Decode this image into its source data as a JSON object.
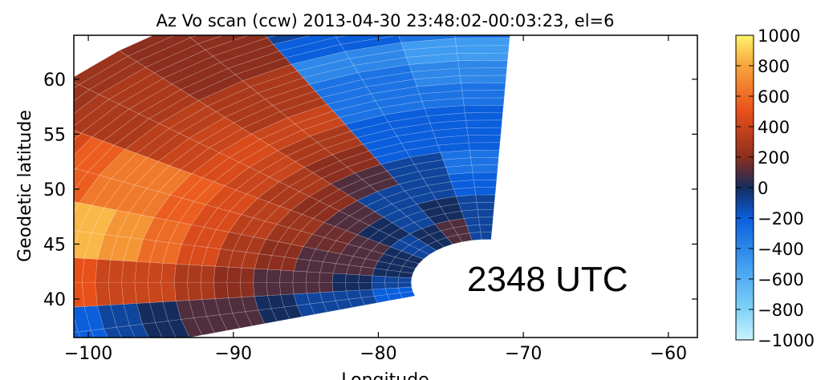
{
  "chart_data": {
    "type": "heatmap",
    "title": "Az Vo scan (ccw) 2013-04-30 23:48:02-00:03:23, el=6",
    "xlabel": "Longitude",
    "ylabel": "Geodetic latitude",
    "xlim": [
      -101,
      -58
    ],
    "ylim": [
      36.5,
      64
    ],
    "xticks": [
      -100,
      -90,
      -80,
      -70,
      -60
    ],
    "yticks": [
      40,
      45,
      50,
      55,
      60
    ],
    "xtick_labels": [
      "−100",
      "−90",
      "−80",
      "−70",
      "−60"
    ],
    "ytick_labels": [
      "40",
      "45",
      "50",
      "55",
      "60"
    ],
    "colorbar": {
      "range": [
        -1000,
        1000
      ],
      "ticks": [
        1000,
        800,
        600,
        400,
        200,
        0,
        -200,
        -400,
        -600,
        -800,
        -1000
      ],
      "tick_labels": [
        "1000",
        "800",
        "600",
        "400",
        "200",
        "0",
        "−200",
        "−400",
        "−600",
        "−800",
        "−1000"
      ]
    },
    "annotation": "2348 UTC",
    "scan_origin": {
      "lon": -72.5,
      "lat": 41.5
    },
    "beams": [
      {
        "azimuth_deg": -3,
        "velocity_from_range_gate_1": [
          -100,
          -100,
          -200,
          -300,
          -200,
          -200,
          -300,
          -400,
          -500,
          -300,
          -200,
          -300
        ]
      },
      {
        "azimuth_deg": -20,
        "velocity_from_range_gate_1": [
          100,
          0,
          -100,
          -100,
          -200,
          -200,
          -300,
          -300,
          -400,
          -200,
          -100,
          -200
        ]
      },
      {
        "azimuth_deg": -34,
        "velocity_from_range_gate_1": [
          0,
          -100,
          -100,
          100,
          200,
          300,
          400,
          300,
          300,
          200,
          200,
          200
        ]
      },
      {
        "azimuth_deg": -50,
        "velocity_from_range_gate_1": [
          -100,
          0,
          100,
          200,
          300,
          400,
          450,
          400,
          350,
          300,
          300,
          250
        ]
      },
      {
        "azimuth_deg": -64,
        "velocity_from_range_gate_1": [
          0,
          100,
          150,
          250,
          350,
          450,
          550,
          650,
          650,
          550,
          450,
          400
        ]
      },
      {
        "azimuth_deg": -78,
        "velocity_from_range_gate_1": [
          0,
          100,
          100,
          200,
          300,
          450,
          600,
          750,
          850,
          850,
          750,
          600
        ]
      },
      {
        "azimuth_deg": -90,
        "velocity_from_range_gate_1": [
          -100,
          0,
          100,
          100,
          200,
          300,
          400,
          400,
          500,
          600,
          500,
          400
        ]
      },
      {
        "azimuth_deg": -102,
        "velocity_from_range_gate_1": [
          -200,
          -100,
          -100,
          0,
          100,
          100,
          0,
          -100,
          -200,
          -300,
          -200,
          -300
        ]
      }
    ]
  }
}
